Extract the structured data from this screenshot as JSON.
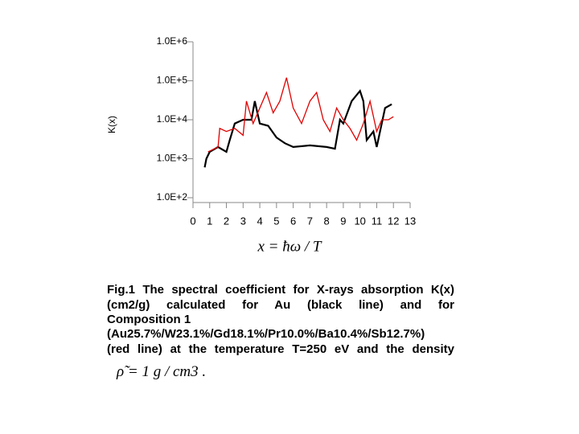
{
  "chart_data": {
    "type": "line",
    "y_label": "K(x)",
    "x_label": "x = ħω / T",
    "log_scale": "y",
    "xlim": [
      0,
      13
    ],
    "xticks": [
      0,
      1,
      2,
      3,
      4,
      5,
      6,
      7,
      8,
      9,
      10,
      11,
      12,
      13
    ],
    "ylim": [
      100,
      1000000
    ],
    "yticks": [
      {
        "value": 100,
        "label": "1.0E+2"
      },
      {
        "value": 1000,
        "label": "1.0E+3"
      },
      {
        "value": 10000,
        "label": "1.0E+4"
      },
      {
        "value": 100000,
        "label": "1.0E+5"
      },
      {
        "value": 1000000,
        "label": "1.0E+6"
      }
    ],
    "series": [
      {
        "color": "#000000",
        "x": [
          0.7,
          0.8,
          1,
          1.5,
          2,
          2.2,
          2.5,
          3,
          3.5,
          3.7,
          4,
          4.5,
          5,
          5.5,
          6,
          7,
          8,
          8.5,
          8.8,
          9,
          9.5,
          10,
          10.2,
          10.4,
          10.8,
          11,
          11.5,
          11.9
        ],
        "values": [
          600,
          1000,
          1500,
          2000,
          1500,
          3000,
          8000,
          10000,
          10000,
          30000,
          8000,
          7000,
          3500,
          2500,
          2000,
          2200,
          2000,
          1800,
          10000,
          8000,
          30000,
          55000,
          30000,
          3000,
          5000,
          2000,
          20000,
          25000
        ]
      },
      {
        "color": "#e00000",
        "x": [
          0.9,
          1.5,
          1.6,
          2,
          2.5,
          3,
          3.2,
          3.6,
          4,
          4.4,
          4.8,
          5.2,
          5.6,
          6,
          6.5,
          7,
          7.4,
          7.8,
          8.2,
          8.6,
          9,
          9.4,
          9.8,
          10.2,
          10.6,
          11,
          11.3,
          11.7,
          12
        ],
        "values": [
          1500,
          2000,
          6000,
          5000,
          6000,
          4000,
          30000,
          8000,
          20000,
          50000,
          15000,
          30000,
          120000,
          20000,
          8000,
          30000,
          50000,
          10000,
          5000,
          20000,
          10000,
          6000,
          3000,
          8000,
          30000,
          5000,
          10000,
          10000,
          12000
        ]
      }
    ]
  },
  "caption": {
    "lines": [
      "Fig.1 The spectral coefficient for X-rays absorption K(x)",
      "(cm2/g) calculated for Au (black line) and for",
      "Composition 1",
      "(Au25.7%/W23.1%/Gd18.1%/Pr10.0%/Ba10.4%/Sb12.7%)",
      "(red line) at the temperature T=250 eV and the density"
    ],
    "formula": "ρ̃ = 1 g / cm3 ."
  }
}
